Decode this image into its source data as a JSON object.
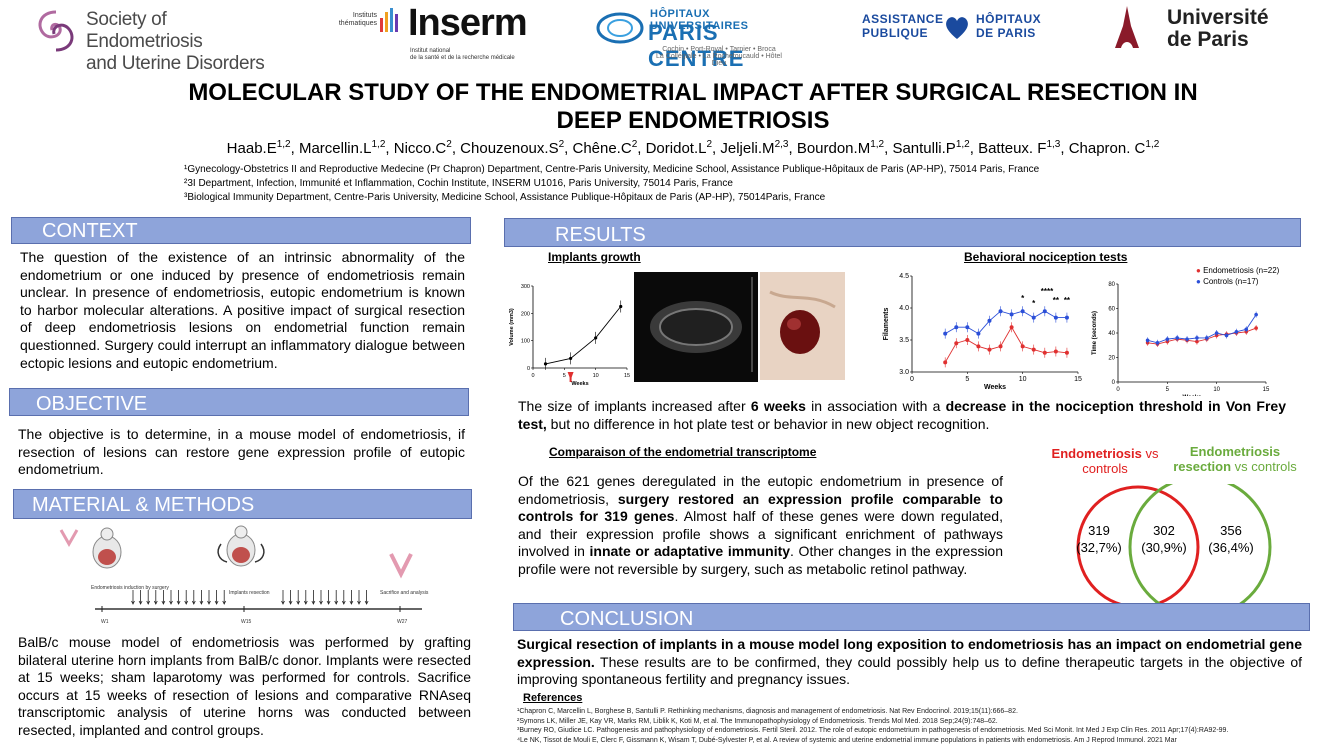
{
  "logos": {
    "seud": {
      "line1": "Society of Endometriosis",
      "line2": "and Uterine Disorders"
    },
    "inserm": {
      "small1": "Instituts",
      "small2": "thématiques",
      "word": "Inserm",
      "sub1": "Institut national",
      "sub2": "de la santé et de la recherche médicale"
    },
    "hup": {
      "top": "HÔPITAUX UNIVERSITAIRES",
      "main": "PARIS CENTRE",
      "sub1": "Cochin • Port-Royal • Tarnier • Broca",
      "sub2": "La Collégiale • La Rochefoucauld • Hôtel Dieu"
    },
    "aphp": {
      "l1a": "ASSISTANCE",
      "l1b": "HÔPITAUX",
      "l2a": "PUBLIQUE",
      "l2b": "DE  PARIS"
    },
    "up": {
      "l1": "Université",
      "l2": "de Paris"
    }
  },
  "header": {
    "title_line1": "MOLECULAR STUDY OF THE ENDOMETRIAL IMPACT AFTER SURGICAL RESECTION IN",
    "title_line2": "DEEP ENDOMETRIOSIS",
    "authors": [
      {
        "name": "Haab.E",
        "sup": "1,2",
        "sep": ", "
      },
      {
        "name": "Marcellin.L",
        "sup": "1,2",
        "sep": ", "
      },
      {
        "name": "Nicco.C",
        "sup": "2",
        "sep": ", "
      },
      {
        "name": "Chouzenoux.S",
        "sup": "2",
        "sep": ", "
      },
      {
        "name": "Chêne.C",
        "sup": "2",
        "sep": ", "
      },
      {
        "name": "Doridot.L",
        "sup": "2",
        "sep": ", "
      },
      {
        "name": "Jeljeli.M",
        "sup": "2,3",
        "sep": ", "
      },
      {
        "name": "Bourdon.M",
        "sup": "1,2",
        "sep": ", "
      },
      {
        "name": "Santulli.P",
        "sup": "1,2",
        "sep": ", "
      },
      {
        "name": "Batteux. F",
        "sup": "1,3",
        "sep": ", "
      },
      {
        "name": "Chapron. C",
        "sup": "1,2",
        "sep": ""
      }
    ],
    "affiliations": [
      "¹Gynecology-Obstetrics II and Reproductive Medecine (Pr Chapron) Department, Centre-Paris University, Medicine School, Assistance Publique-Hôpitaux de Paris (AP-HP), 75014 Paris, France",
      "²3I Department, Infection, Immunité et Inflammation, Cochin Institute, INSERM U1016, Paris University, 75014 Paris, France",
      "³Biological Immunity Department, Centre-Paris University, Medicine School, Assistance Publique-Hôpitaux de Paris (AP-HP), 75014Paris, France"
    ]
  },
  "context": {
    "heading": "CONTEXT",
    "text": "The question of the existence of an intrinsic abnormality of the endometrium or one induced by presence of endometriosis remain unclear. In presence of endometriosis, eutopic endometrium is known to harbor molecular alterations. A positive impact of surgical resection of deep endometriosis lesions on endometrial function remain questionned.  Surgery could interrupt an inflammatory dialogue between ectopic lesions and eutopic endometrium."
  },
  "objective": {
    "heading": "OBJECTIVE",
    "text": "The objective is to determine, in a mouse model of endometriosis, if resection of lesions can restore gene expression profile of eutopic endometrium."
  },
  "methods": {
    "heading": "MATERIAL & METHODS",
    "timeline": {
      "label_induction": "Endometriosis induction by surgery",
      "label_resection": "Implants resection",
      "label_sacrifice": "Sacrifice and analysis",
      "w1": "W1",
      "w15": "W15",
      "w27": "W27"
    },
    "text": "BalB/c mouse model of endometriosis was performed by grafting bilateral uterine horn implants from BalB/c donor. Implants were resected at 15 weeks; sham laparotomy was performed for controls. Sacrifice occurs at 15 weeks of resection of lesions and comparative RNAseq transcriptomic analysis of uterine horns was conducted between resected, implanted and control groups."
  },
  "results": {
    "heading": "RESULTS",
    "implants_label": "Implants growth",
    "nociception_label": "Behavioral nociception tests",
    "summary_pre": "The size of implants increased after ",
    "summary_b1": "6 weeks",
    "summary_mid": " in association with a ",
    "summary_b2": "decrease in the nociception threshold in Von Frey test,",
    "summary_post": " but no difference in hot plate test or behavior in new object recognition.",
    "transcriptome_label": "Comparaison of the endometrial transcriptome",
    "tx_pre": "Of the 621 genes deregulated in the eutopic endometrium in presence of endometriosis, ",
    "tx_b1": "surgery restored an expression profile comparable to controls for 319 genes",
    "tx_mid": ". Almost half of these genes were down regulated, and their expression profile shows a significant enrichment of pathways involved in ",
    "tx_b2": "innate or adaptative immunity",
    "tx_post": ". Other changes in the expression profile were not reversible by surgery, such as metabolic retinol pathway.",
    "venn": {
      "left_title_bold": "Endometriosis",
      "left_title_rest": " vs",
      "left_title_line2": "controls",
      "right_title_bold1": "Endometriosis",
      "right_title_bold2": "resection",
      "right_title_rest": " vs controls",
      "left_n": "319",
      "left_pct": "(32,7%)",
      "mid_n": "302",
      "mid_pct": "(30,9%)",
      "right_n": "356",
      "right_pct": "(36,4%)",
      "red": "#e02020",
      "green": "#6aab3d"
    }
  },
  "chart_data": [
    {
      "type": "line",
      "title": "Implants growth",
      "xlabel": "Weeks",
      "ylabel": "Volume (mm3)",
      "xlim": [
        0,
        15
      ],
      "ylim": [
        0,
        300
      ],
      "xticks": [
        "0",
        "5",
        "10",
        "15"
      ],
      "yticks": [
        "0",
        "100",
        "200",
        "300"
      ],
      "series": [
        {
          "x": [
            2,
            6,
            10,
            14
          ],
          "values": [
            15,
            35,
            110,
            225
          ]
        }
      ]
    },
    {
      "type": "line",
      "title": "Behavioral nociception tests",
      "xlabel": "Weeks",
      "ylabel": "Filaments",
      "xlim": [
        0,
        15
      ],
      "ylim": [
        3.0,
        4.5
      ],
      "xticks": [
        "0",
        "5",
        "10",
        "15"
      ],
      "yticks": [
        "3.0",
        "3.5",
        "4.0",
        "4.5"
      ],
      "significance": [
        "*",
        "*",
        "****",
        "**",
        "**"
      ],
      "series": [
        {
          "name": "Endometriosis (n=22)",
          "color": "#e03030",
          "x": [
            3,
            4,
            5,
            6,
            7,
            8,
            9,
            10,
            11,
            12,
            13,
            14
          ],
          "values": [
            3.15,
            3.45,
            3.5,
            3.4,
            3.35,
            3.4,
            3.7,
            3.4,
            3.35,
            3.3,
            3.32,
            3.3
          ]
        },
        {
          "name": "Controls (n=17)",
          "color": "#2b4fd8",
          "x": [
            3,
            4,
            5,
            6,
            7,
            8,
            9,
            10,
            11,
            12,
            13,
            14
          ],
          "values": [
            3.6,
            3.7,
            3.7,
            3.6,
            3.8,
            3.95,
            3.9,
            3.95,
            3.85,
            3.95,
            3.85,
            3.85
          ]
        }
      ]
    },
    {
      "type": "line",
      "xlabel": "Weeks",
      "ylabel": "Time (seconds)",
      "xlim": [
        0,
        15
      ],
      "ylim": [
        0,
        80
      ],
      "xticks": [
        "0",
        "5",
        "10",
        "15"
      ],
      "yticks": [
        "0",
        "20",
        "40",
        "60",
        "80"
      ],
      "series": [
        {
          "name": "Endometriosis (n=22)",
          "color": "#e03030",
          "x": [
            3,
            4,
            5,
            6,
            7,
            8,
            9,
            10,
            11,
            12,
            13,
            14
          ],
          "values": [
            32,
            31,
            33,
            35,
            34,
            33,
            35,
            38,
            39,
            40,
            41,
            44
          ]
        },
        {
          "name": "Controls (n=17)",
          "color": "#2b4fd8",
          "x": [
            3,
            4,
            5,
            6,
            7,
            8,
            9,
            10,
            11,
            12,
            13,
            14
          ],
          "values": [
            34,
            32,
            35,
            36,
            35,
            36,
            36,
            40,
            38,
            41,
            43,
            55
          ]
        }
      ]
    }
  ],
  "conclusion": {
    "heading": "CONCLUSION",
    "bold": "Surgical resection of implants in a mouse model long exposition to endometriosis has an impact on endometrial gene expression.",
    "rest": " These results are to be confirmed, they could possibly help us to define therapeutic targets in the objective of improving spontaneous fertility and pregnancy issues."
  },
  "references": {
    "heading": "References",
    "items": [
      "¹Chapron C, Marcellin L, Borghese B, Santulli P. Rethinking mechanisms, diagnosis and management of endometriosis. Nat Rev Endocrinol. 2019;15(11):666–82.",
      "²Symons LK, Miller JE, Kay VR, Marks RM, Liblik K, Koti M, et al. The Immunopathophysiology of Endometriosis. Trends Mol Med. 2018 Sep;24(9):748–62.",
      "³Burney RO, Giudice LC. Pathogenesis and pathophysiology of endometriosis. Fertil Steril. 2012. The role of eutopic endometrium in pathogenesis of endometriosis. Med Sci Monit. Int Med J Exp Clin Res. 2011 Apr;17(4):RA92-99.",
      "⁴Le NK, Tissot de Mouli E, Clerc F, Gissmann K, Wisam T, Dubé-Sylvester P, et al. A review of systemic and uterine endometrial immune populations in patients with endometriosis. Am J Reprod Immunol. 2021 Mar"
    ]
  }
}
